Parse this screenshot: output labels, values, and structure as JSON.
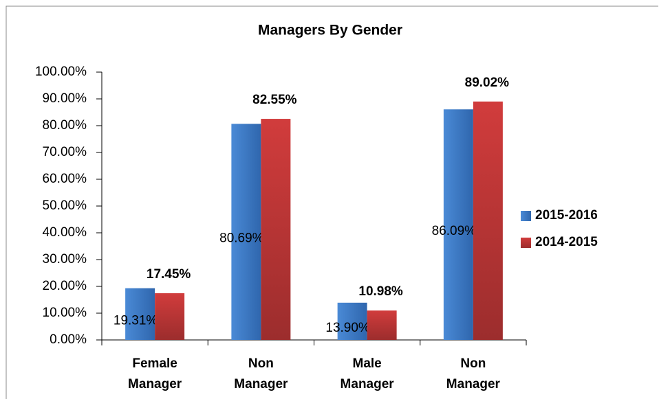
{
  "chart_data": {
    "type": "bar",
    "title": "Managers By Gender",
    "categories": [
      "Female Manager",
      "Non Manager",
      "Male Manager",
      "Non Manager"
    ],
    "series": [
      {
        "name": "2015-2016",
        "color": "#3d7cc9",
        "values": [
          19.31,
          80.69,
          13.9,
          86.09
        ],
        "value_labels": [
          "19.31%",
          "80.69%",
          "13.90%",
          "86.09%"
        ]
      },
      {
        "name": "2014-2015",
        "color": "#c53a3a",
        "values": [
          17.45,
          82.55,
          10.98,
          89.02
        ],
        "value_labels": [
          "17.45%",
          "82.55%",
          "10.98%",
          "89.02%"
        ]
      }
    ],
    "ylim": [
      0,
      100
    ],
    "yticks": [
      {
        "value": 0,
        "label": "0.00%"
      },
      {
        "value": 10,
        "label": "10.00%"
      },
      {
        "value": 20,
        "label": "20.00%"
      },
      {
        "value": 30,
        "label": "30.00%"
      },
      {
        "value": 40,
        "label": "40.00%"
      },
      {
        "value": 50,
        "label": "50.00%"
      },
      {
        "value": 60,
        "label": "60.00%"
      },
      {
        "value": 70,
        "label": "70.00%"
      },
      {
        "value": 80,
        "label": "80.00%"
      },
      {
        "value": 90,
        "label": "90.00%"
      },
      {
        "value": 100,
        "label": "100.00%"
      }
    ],
    "legend": "right"
  }
}
